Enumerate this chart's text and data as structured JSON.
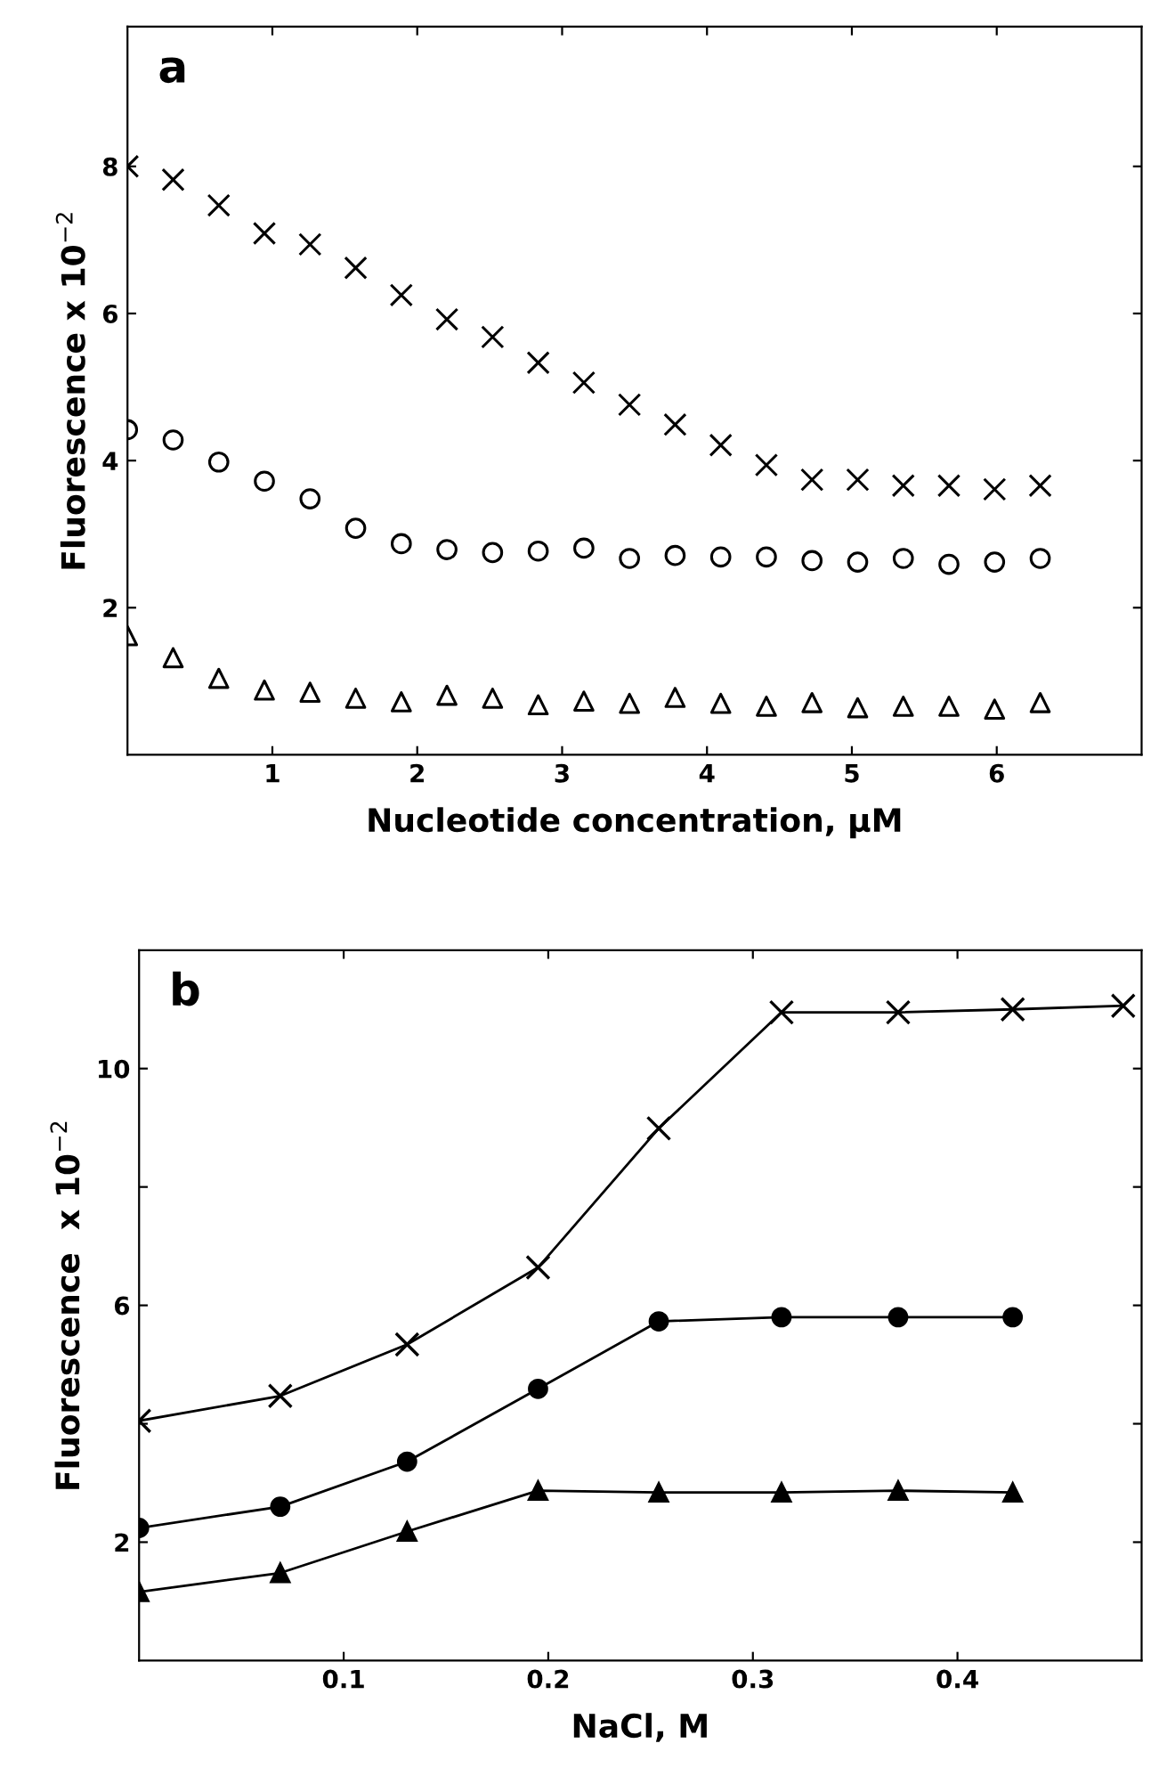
{
  "chart_data": [
    {
      "type": "scatter",
      "xlabel": "Nucleotide concentration, μM",
      "ylabel": "Fluorescence x 10$^{−2}$",
      "annotations": [
        "a"
      ],
      "x": [
        0,
        0.315,
        0.63,
        0.945,
        1.26,
        1.575,
        1.89,
        2.205,
        2.52,
        2.835,
        3.15,
        3.465,
        3.78,
        4.095,
        4.41,
        4.725,
        5.04,
        5.355,
        5.67,
        5.985,
        6.3
      ],
      "series": [
        {
          "color": "#000000",
          "marker": "cross",
          "values": [
            8.0,
            7.82,
            7.47,
            7.09,
            6.94,
            6.62,
            6.25,
            5.92,
            5.68,
            5.33,
            5.06,
            4.76,
            4.49,
            4.21,
            3.94,
            3.74,
            3.74,
            3.66,
            3.66,
            3.61,
            3.66
          ]
        },
        {
          "color": "#000000",
          "marker": "circle",
          "values": [
            4.42,
            4.28,
            3.98,
            3.72,
            3.48,
            3.08,
            2.87,
            2.79,
            2.75,
            2.77,
            2.81,
            2.67,
            2.71,
            2.69,
            2.69,
            2.64,
            2.62,
            2.67,
            2.59,
            2.62,
            2.67
          ]
        },
        {
          "color": "#000000",
          "marker": "triangle",
          "values": [
            1.62,
            1.32,
            1.04,
            0.88,
            0.85,
            0.77,
            0.72,
            0.81,
            0.77,
            0.68,
            0.73,
            0.7,
            0.78,
            0.7,
            0.66,
            0.71,
            0.64,
            0.66,
            0.66,
            0.62,
            0.71
          ]
        }
      ],
      "xlim": [
        0,
        7
      ],
      "ylim": [
        0,
        9.9
      ],
      "xticks": [
        1,
        2,
        3,
        4,
        5,
        6
      ],
      "yticks": [
        2,
        4,
        6,
        8
      ],
      "grid": false,
      "legend": false
    },
    {
      "type": "line",
      "xlabel": "NaCl, M",
      "ylabel": "Fluorescence  x 10$^{−2}$",
      "annotations": [
        "b"
      ],
      "line_style": "solid",
      "series": [
        {
          "color": "#000000",
          "marker": "cross",
          "x": [
            0,
            0.069,
            0.131,
            0.195,
            0.254,
            0.314,
            0.371,
            0.427,
            0.481
          ],
          "values": [
            4.05,
            4.47,
            5.34,
            6.64,
            8.99,
            10.95,
            10.95,
            11.0,
            11.06
          ]
        },
        {
          "color": "#000000",
          "marker": "circle",
          "x": [
            0,
            0.069,
            0.131,
            0.195,
            0.254,
            0.314,
            0.371,
            0.427
          ],
          "values": [
            2.24,
            2.6,
            3.36,
            4.59,
            5.73,
            5.8,
            5.8,
            5.8
          ]
        },
        {
          "color": "#000000",
          "marker": "triangle",
          "x": [
            0,
            0.069,
            0.131,
            0.195,
            0.254,
            0.314,
            0.371,
            0.427
          ],
          "values": [
            1.16,
            1.48,
            2.18,
            2.87,
            2.84,
            2.84,
            2.87,
            2.84
          ]
        }
      ],
      "xlim": [
        0,
        0.49
      ],
      "ylim": [
        0,
        12
      ],
      "xticks": [
        0.1,
        0.2,
        0.3,
        0.4
      ],
      "yticks": [
        2,
        {
          "value": 4,
          "label": null
        },
        6,
        {
          "value": 8,
          "label": null
        },
        10
      ],
      "grid": false,
      "legend": false
    }
  ]
}
